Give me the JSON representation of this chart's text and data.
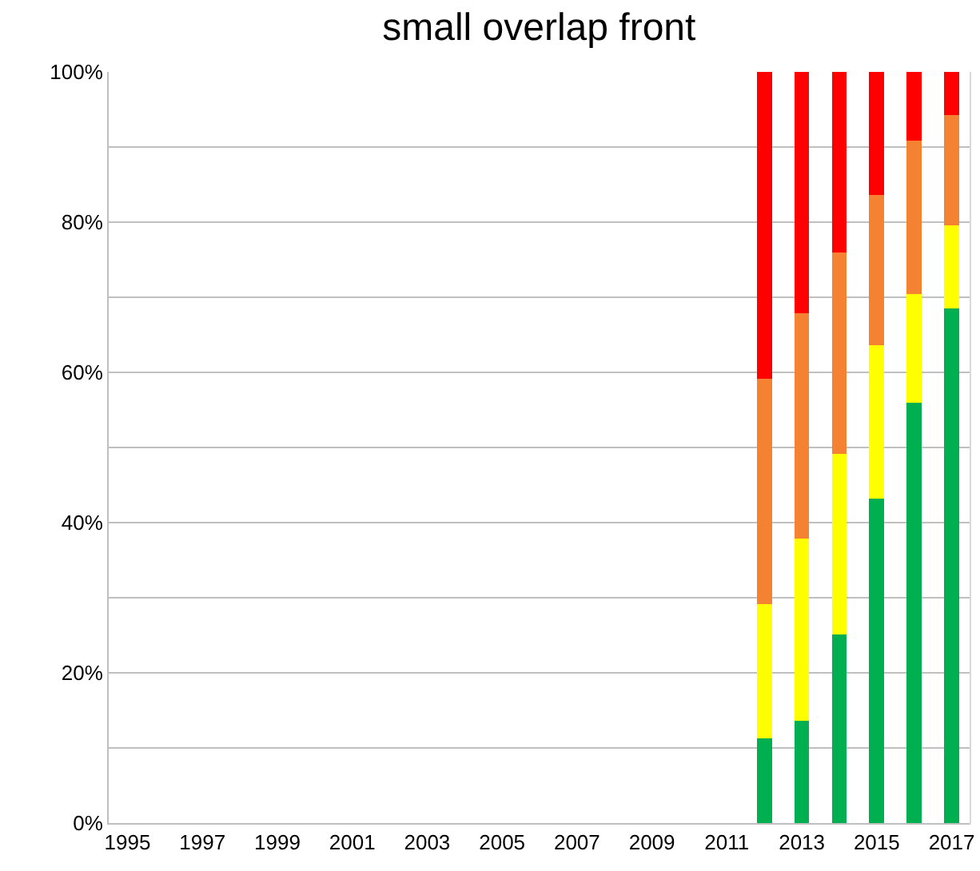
{
  "chart_data": {
    "type": "bar",
    "title": "small overlap front",
    "stacked": true,
    "categories": [
      "1995",
      null,
      "1997",
      null,
      "1999",
      null,
      "2001",
      null,
      "2003",
      null,
      "2005",
      null,
      "2007",
      null,
      "2009",
      null,
      "2011",
      null,
      "2013",
      null,
      "2015",
      null,
      "2017"
    ],
    "series": [
      {
        "color": "#00b050",
        "values": [
          null,
          null,
          null,
          null,
          null,
          null,
          null,
          null,
          null,
          null,
          null,
          null,
          null,
          null,
          null,
          null,
          null,
          11.3,
          13.6,
          25.1,
          43.2,
          56.0,
          68.5
        ]
      },
      {
        "color": "#ffff00",
        "values": [
          null,
          null,
          null,
          null,
          null,
          null,
          null,
          null,
          null,
          null,
          null,
          null,
          null,
          null,
          null,
          null,
          null,
          17.8,
          24.3,
          24.0,
          20.4,
          14.4,
          11.1
        ]
      },
      {
        "color": "#f58233",
        "values": [
          null,
          null,
          null,
          null,
          null,
          null,
          null,
          null,
          null,
          null,
          null,
          null,
          null,
          null,
          null,
          null,
          null,
          30.0,
          30.0,
          26.9,
          20.0,
          20.5,
          14.7
        ]
      },
      {
        "color": "#ff0000",
        "values": [
          null,
          null,
          null,
          null,
          null,
          null,
          null,
          null,
          null,
          null,
          null,
          null,
          null,
          null,
          null,
          null,
          null,
          40.9,
          32.1,
          24.0,
          16.4,
          9.1,
          5.7
        ]
      }
    ],
    "ylim": [
      0,
      100
    ],
    "yticks": [
      {
        "value": 0,
        "label": "0%"
      },
      {
        "value": 10,
        "label": null
      },
      {
        "value": 20,
        "label": "20%"
      },
      {
        "value": 30,
        "label": null
      },
      {
        "value": 40,
        "label": "40%"
      },
      {
        "value": 50,
        "label": null
      },
      {
        "value": 60,
        "label": "60%"
      },
      {
        "value": 70,
        "label": null
      },
      {
        "value": 80,
        "label": "80%"
      },
      {
        "value": 90,
        "label": null
      },
      {
        "value": 100,
        "label": "100%"
      }
    ],
    "grid": "y"
  }
}
